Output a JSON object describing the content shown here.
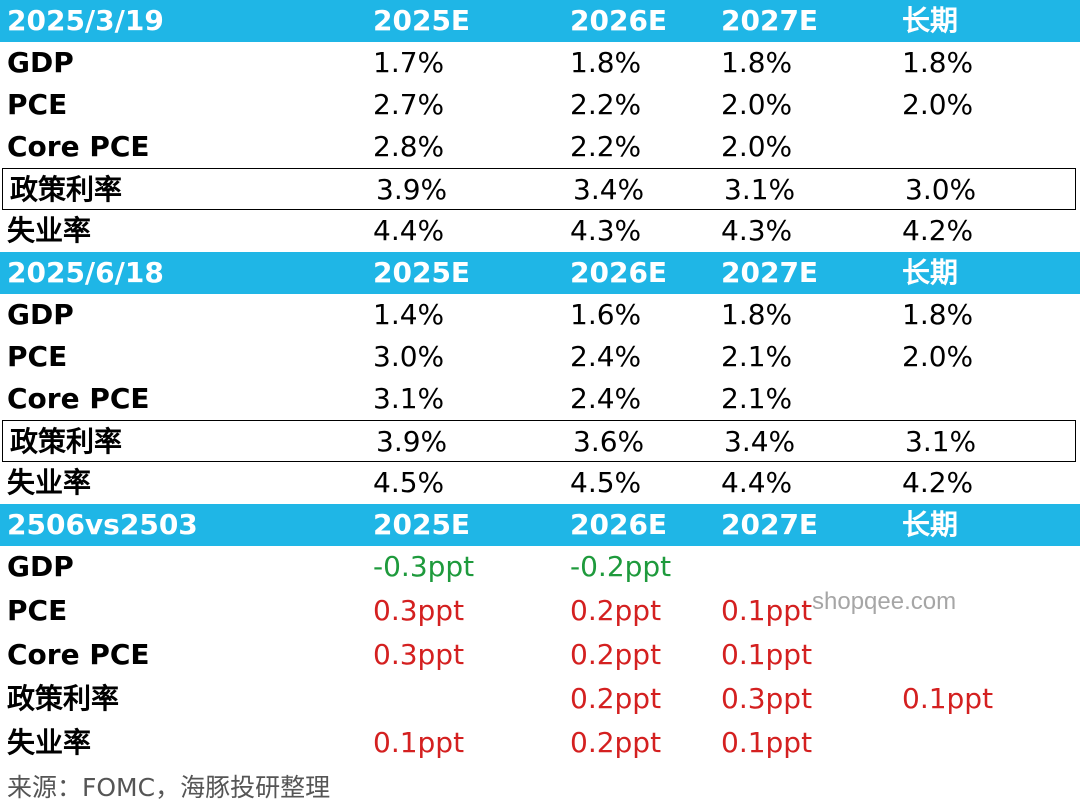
{
  "colors": {
    "header_bg": "#1fb6e6",
    "negative": "#1e9a3c",
    "positive": "#d42020"
  },
  "sections": [
    {
      "header": [
        "2025/3/19",
        "2025E",
        "2026E",
        "2027E",
        "长期"
      ],
      "rows": [
        {
          "label": "GDP",
          "values": [
            "1.7%",
            "1.8%",
            "1.8%",
            "1.8%"
          ]
        },
        {
          "label": "PCE",
          "values": [
            "2.7%",
            "2.2%",
            "2.0%",
            "2.0%"
          ]
        },
        {
          "label": "Core PCE",
          "values": [
            "2.8%",
            "2.2%",
            "2.0%",
            ""
          ]
        },
        {
          "label": "政策利率",
          "values": [
            "3.9%",
            "3.4%",
            "3.1%",
            "3.0%"
          ],
          "boxed": true
        },
        {
          "label": "失业率",
          "values": [
            "4.4%",
            "4.3%",
            "4.3%",
            "4.2%"
          ]
        }
      ]
    },
    {
      "header": [
        "2025/6/18",
        "2025E",
        "2026E",
        "2027E",
        "长期"
      ],
      "rows": [
        {
          "label": "GDP",
          "values": [
            "1.4%",
            "1.6%",
            "1.8%",
            "1.8%"
          ]
        },
        {
          "label": "PCE",
          "values": [
            "3.0%",
            "2.4%",
            "2.1%",
            "2.0%"
          ]
        },
        {
          "label": "Core PCE",
          "values": [
            "3.1%",
            "2.4%",
            "2.1%",
            ""
          ]
        },
        {
          "label": "政策利率",
          "values": [
            "3.9%",
            "3.6%",
            "3.4%",
            "3.1%"
          ],
          "boxed": true
        },
        {
          "label": "失业率",
          "values": [
            "4.5%",
            "4.5%",
            "4.4%",
            "4.2%"
          ]
        }
      ]
    },
    {
      "header": [
        "2506vs2503",
        "2025E",
        "2026E",
        "2027E",
        "长期"
      ],
      "rows": [
        {
          "label": "GDP",
          "values": [
            "-0.3ppt",
            "-0.2ppt",
            "",
            ""
          ]
        },
        {
          "label": "PCE",
          "values": [
            "0.3ppt",
            "0.2ppt",
            "0.1ppt",
            ""
          ]
        },
        {
          "label": "Core PCE",
          "values": [
            "0.3ppt",
            "0.2ppt",
            "0.1ppt",
            ""
          ]
        },
        {
          "label": "政策利率",
          "values": [
            "",
            "0.2ppt",
            "0.3ppt",
            "0.1ppt"
          ]
        },
        {
          "label": "失业率",
          "values": [
            "0.1ppt",
            "0.2ppt",
            "0.1ppt",
            ""
          ]
        }
      ]
    }
  ],
  "source": "来源：FOMC，海豚投研整理",
  "watermark": "shopqee.com"
}
